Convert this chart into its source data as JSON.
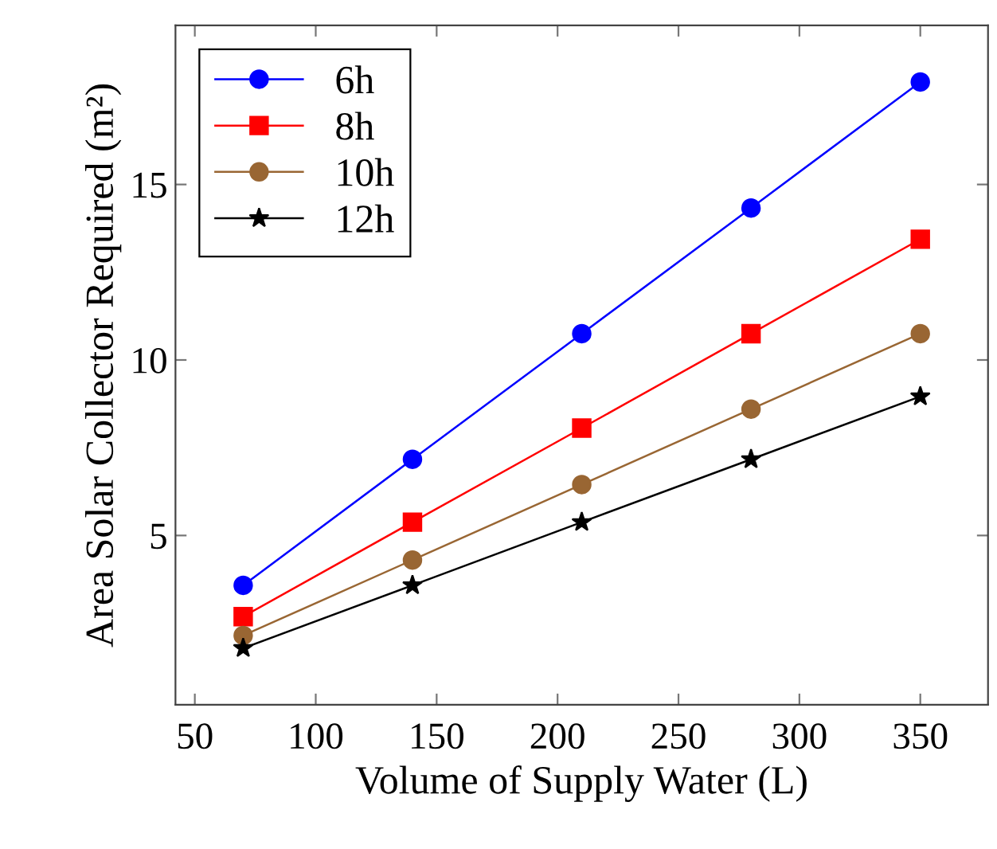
{
  "chart_data": {
    "type": "line",
    "xlabel": "Volume of Supply Water (L)",
    "ylabel": "Area Solar Collector Required (m²)",
    "x": [
      70,
      140,
      210,
      280,
      350
    ],
    "series": [
      {
        "name": "6h",
        "color": "#0000ff",
        "marker": "circle",
        "values": [
          3.58,
          7.17,
          10.75,
          14.33,
          17.92
        ]
      },
      {
        "name": "8h",
        "color": "#ff0000",
        "marker": "square",
        "values": [
          2.69,
          5.38,
          8.06,
          10.75,
          13.44
        ]
      },
      {
        "name": "10h",
        "color": "#996633",
        "marker": "circle",
        "values": [
          2.15,
          4.3,
          6.45,
          8.6,
          10.75
        ]
      },
      {
        "name": "12h",
        "color": "#000000",
        "marker": "star",
        "values": [
          1.79,
          3.58,
          5.38,
          7.17,
          8.96
        ]
      }
    ],
    "xlim": [
      42,
      378
    ],
    "ylim": [
      0.18,
      19.53
    ],
    "xticks": [
      50,
      100,
      150,
      200,
      250,
      300,
      350
    ],
    "yticks": [
      5,
      10,
      15
    ],
    "grid": false,
    "legend": "top left",
    "line_style": "solid"
  }
}
